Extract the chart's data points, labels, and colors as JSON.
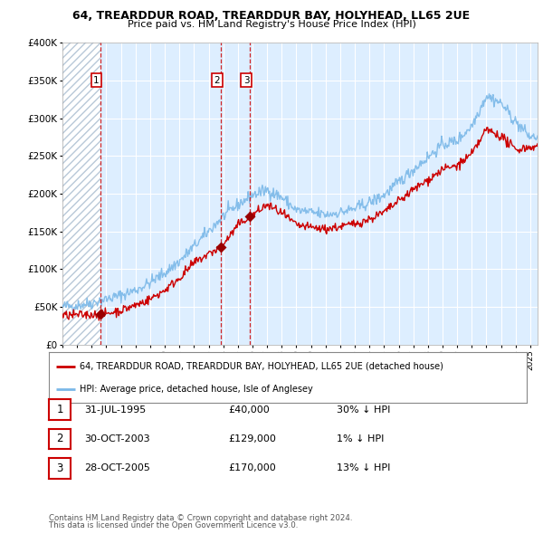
{
  "title1": "64, TREARDDUR ROAD, TREARDDUR BAY, HOLYHEAD, LL65 2UE",
  "title2": "Price paid vs. HM Land Registry's House Price Index (HPI)",
  "hpi_color": "#7ab8e8",
  "price_color": "#cc0000",
  "sale_marker_color": "#990000",
  "vline_color": "#cc0000",
  "background_color": "#ffffff",
  "chart_bg_color": "#ddeeff",
  "grid_color": "#ffffff",
  "ylim": [
    0,
    400000
  ],
  "yticks": [
    0,
    50000,
    100000,
    150000,
    200000,
    250000,
    300000,
    350000,
    400000
  ],
  "ytick_labels": [
    "£0",
    "£50K",
    "£100K",
    "£150K",
    "£200K",
    "£250K",
    "£300K",
    "£350K",
    "£400K"
  ],
  "sale_prices": [
    40000,
    129000,
    170000
  ],
  "sale_labels": [
    "1",
    "2",
    "3"
  ],
  "sale_pcts": [
    "30% ↓ HPI",
    "1% ↓ HPI",
    "13% ↓ HPI"
  ],
  "sale_date_strs": [
    "31-JUL-1995",
    "30-OCT-2003",
    "28-OCT-2005"
  ],
  "legend_line1": "64, TREARDDUR ROAD, TREARDDUR BAY, HOLYHEAD, LL65 2UE (detached house)",
  "legend_line2": "HPI: Average price, detached house, Isle of Anglesey",
  "footer1": "Contains HM Land Registry data © Crown copyright and database right 2024.",
  "footer2": "This data is licensed under the Open Government Licence v3.0.",
  "hatch_start_year": 1993.0,
  "hatch_end_year": 1995.58,
  "xlim_start": 1993.0,
  "xlim_end": 2025.5,
  "sale_year_floats": [
    1995.58,
    2003.83,
    2005.82
  ]
}
